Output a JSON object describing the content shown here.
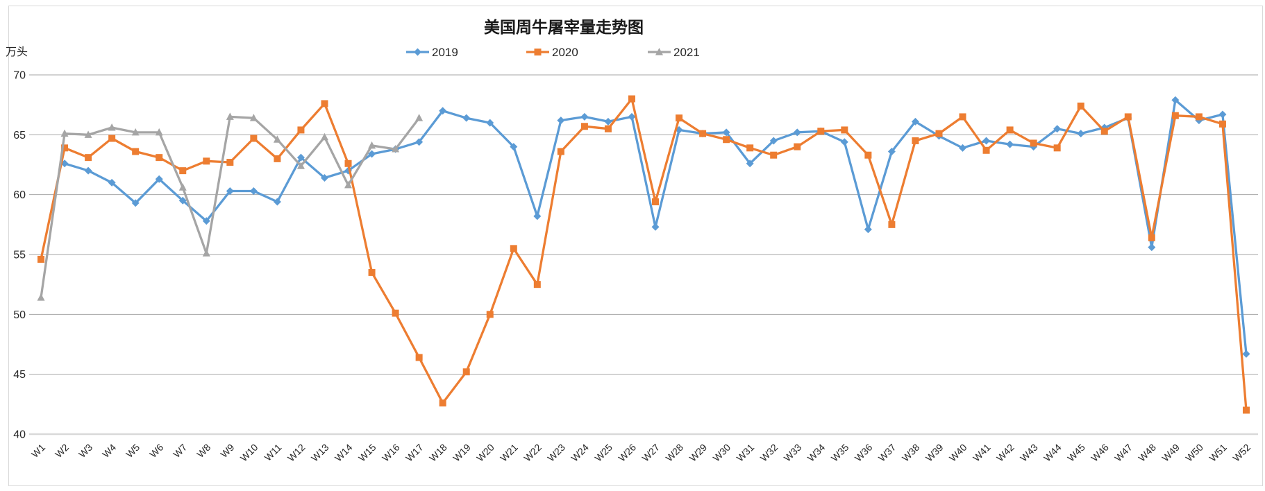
{
  "chart": {
    "title": "美国周牛屠宰量走势图",
    "unit_label": "万头"
  },
  "chart_data": {
    "type": "line",
    "title": "美国周牛屠宰量走势图",
    "xlabel": "",
    "ylabel": "万头",
    "ylim": [
      40,
      70
    ],
    "yticks": [
      70,
      65,
      60,
      55,
      50,
      45,
      40
    ],
    "grid": true,
    "legend_position": "top",
    "gridline_color": "#A6A6A6",
    "axis_line_color": "#D9D9D9",
    "frame_color": "#D9D9D9",
    "categories": [
      "W1",
      "W2",
      "W3",
      "W4",
      "W5",
      "W6",
      "W7",
      "W8",
      "W9",
      "W10",
      "W11",
      "W12",
      "W13",
      "W14",
      "W15",
      "W16",
      "W17",
      "W18",
      "W19",
      "W20",
      "W21",
      "W22",
      "W23",
      "W24",
      "W25",
      "W26",
      "W27",
      "W28",
      "W29",
      "W30",
      "W31",
      "W32",
      "W33",
      "W34",
      "W35",
      "W36",
      "W37",
      "W38",
      "W39",
      "W40",
      "W41",
      "W42",
      "W43",
      "W44",
      "W45",
      "W46",
      "W47",
      "W48",
      "W49",
      "W50",
      "W51",
      "W52"
    ],
    "series": [
      {
        "name": "2019",
        "color": "#5B9BD5",
        "marker": "diamond",
        "values": [
          null,
          62.6,
          62.0,
          61.0,
          59.3,
          61.3,
          59.5,
          57.8,
          60.3,
          60.3,
          59.4,
          63.1,
          61.4,
          62.0,
          63.4,
          63.8,
          64.4,
          67.0,
          66.4,
          66.0,
          64.0,
          58.2,
          66.2,
          66.5,
          66.1,
          66.5,
          57.3,
          65.4,
          65.1,
          65.2,
          62.6,
          64.5,
          65.2,
          65.3,
          64.4,
          57.1,
          63.6,
          66.1,
          64.9,
          63.9,
          64.5,
          64.2,
          64.0,
          65.5,
          65.1,
          65.6,
          66.4,
          55.6,
          67.9,
          66.2,
          66.7,
          46.7
        ]
      },
      {
        "name": "2020",
        "color": "#ED7D31",
        "marker": "square",
        "values": [
          54.6,
          63.9,
          63.1,
          64.7,
          63.6,
          63.1,
          62.0,
          62.8,
          62.7,
          64.7,
          63.0,
          65.4,
          67.6,
          62.6,
          53.5,
          50.1,
          46.4,
          42.6,
          45.2,
          50.0,
          55.5,
          52.5,
          63.6,
          65.7,
          65.5,
          68.0,
          59.4,
          66.4,
          65.1,
          64.6,
          63.9,
          63.3,
          64.0,
          65.3,
          65.4,
          63.3,
          57.5,
          64.5,
          65.1,
          66.5,
          63.7,
          65.4,
          64.3,
          63.9,
          67.4,
          65.3,
          66.5,
          56.4,
          66.6,
          66.5,
          65.9,
          42.0
        ]
      },
      {
        "name": "2021",
        "color": "#A5A5A5",
        "marker": "triangle",
        "values": [
          51.4,
          65.1,
          65.0,
          65.6,
          65.2,
          65.2,
          60.6,
          55.1,
          66.5,
          66.4,
          64.6,
          62.4,
          64.8,
          60.8,
          64.1,
          63.8,
          66.4,
          null,
          null,
          null,
          null,
          null,
          null,
          null,
          null,
          null,
          null,
          null,
          null,
          null,
          null,
          null,
          null,
          null,
          null,
          null,
          null,
          null,
          null,
          null,
          null,
          null,
          null,
          null,
          null,
          null,
          null,
          null,
          null,
          null,
          null,
          null
        ]
      }
    ]
  }
}
